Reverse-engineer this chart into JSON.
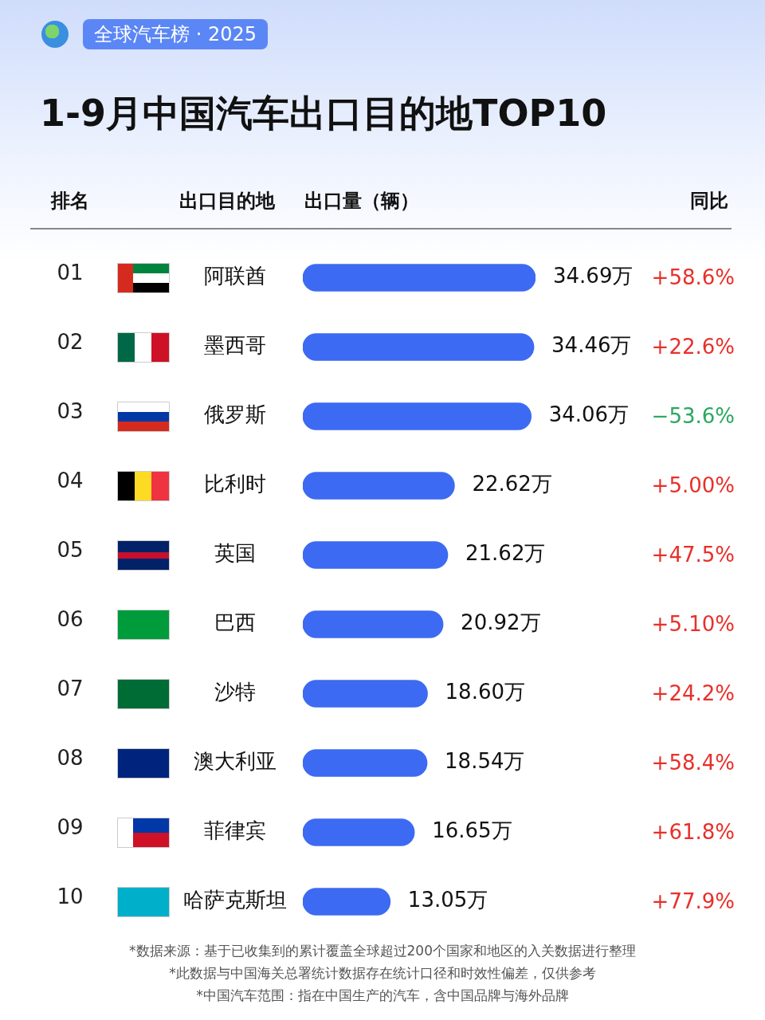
{
  "chart_data": {
    "type": "bar",
    "orientation": "horizontal",
    "title": "1-9月中国汽车出口目的地TOP10",
    "subtitle": "全球汽车榜 · 2025",
    "categories": [
      "阿联酋",
      "墨西哥",
      "俄罗斯",
      "比利时",
      "英国",
      "巴西",
      "沙特",
      "澳大利亚",
      "菲律宾",
      "哈萨克斯坦"
    ],
    "values": [
      34.69,
      34.46,
      34.06,
      22.62,
      21.62,
      20.92,
      18.6,
      18.54,
      16.65,
      13.05
    ],
    "value_labels": [
      "34.69万",
      "34.46万",
      "34.06万",
      "22.62万",
      "21.62万",
      "20.92万",
      "18.60万",
      "18.54万",
      "16.65万",
      "13.05万"
    ],
    "color": "#3d6af2",
    "annotations": [
      "排名",
      "出口目的地",
      "出口量（辆）",
      "同比",
      "01",
      "+58.6%",
      "02",
      "+22.6%",
      "03",
      "−53.6%",
      "04",
      "+5.00%",
      "05",
      "+47.5%",
      "06",
      "+5.10%",
      "07",
      "+24.2%",
      "08",
      "+58.4%",
      "09",
      "+61.8%",
      "10",
      "+77.9%",
      "*数据来源：基于已收集到的累计覆盖全球超过200个国家和地区的入关数据进行整理",
      "*此数据与中国海关总署统计数据存在统计口径和时效性偏差，仅供参考",
      "*中国汽车范围：指在中国生产的汽车，含中国品牌与海外品牌"
    ]
  }
}
